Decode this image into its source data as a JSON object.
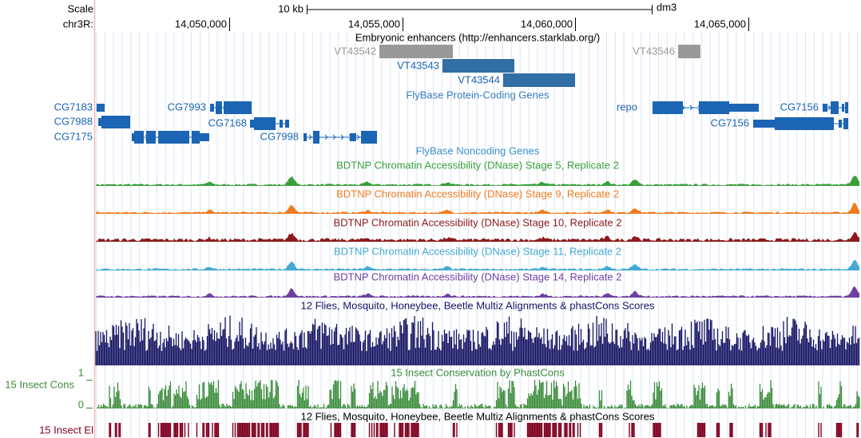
{
  "header": {
    "scale_label": "Scale",
    "scale_bar": "10 kb",
    "assembly": "dm3",
    "chrom": "chr3R:",
    "positions": [
      "14,050,000",
      "14,055,000",
      "14,060,000",
      "14,065,000"
    ]
  },
  "enhancers": {
    "title": "Embryonic enhancers (http://enhancers.starklab.org/)",
    "features": [
      "VT43542",
      "VT43543",
      "VT43544",
      "VT43546"
    ]
  },
  "genes": {
    "title": "FlyBase Protein-Coding Genes",
    "features": [
      "CG7183",
      "CG7988",
      "CG7175",
      "CG7993",
      "CG7168",
      "CG7998",
      "repo",
      "CG7156",
      "CG7156"
    ]
  },
  "noncoding": {
    "title": "FlyBase Noncoding Genes"
  },
  "dnase": [
    "BDTNP Chromatin Accessibility (DNase) Stage 5, Replicate 2",
    "BDTNP Chromatin Accessibility (DNase) Stage 9, Replicate 2",
    "BDTNP Chromatin Accessibility (DNase) Stage 10, Replicate 2",
    "BDTNP Chromatin Accessibility (DNase) Stage 11, Replicate 2",
    "BDTNP Chromatin Accessibility (DNase) Stage 14, Replicate 2"
  ],
  "multiz": {
    "title": "12 Flies, Mosquito, Honeybee, Beetle Multiz Alignments & phastCons Scores"
  },
  "phastcons": {
    "title": "15 Insect Conservation by PhastCons",
    "side_label": "15 Insect Cons",
    "ylim": [
      0,
      1
    ]
  },
  "elements": {
    "title": "12 Flies, Mosquito, Honeybee, Beetle Multiz Alignments & phastCons Scores",
    "side_label": "15 Insect El"
  }
}
